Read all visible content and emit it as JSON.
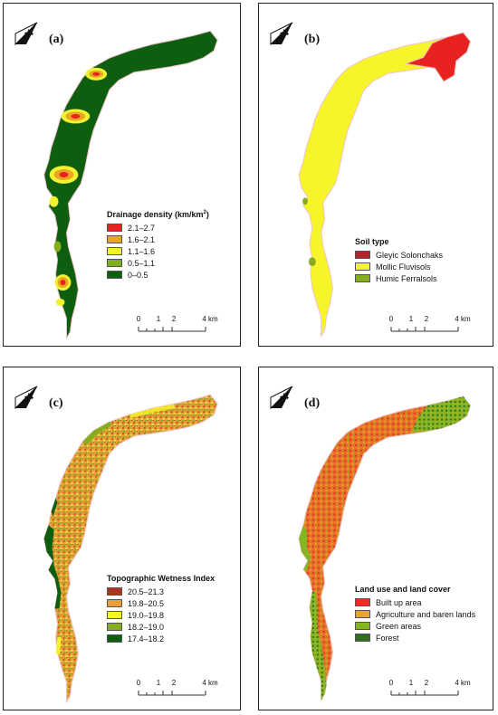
{
  "panels": [
    {
      "label": "(a)",
      "legend": {
        "title": "Drainage density (km/km",
        "title_sup": "2",
        "title_end": ")",
        "items": [
          {
            "label": "2.1–2.7",
            "color": "#e8231f"
          },
          {
            "label": "1.6–2.1",
            "color": "#e8a723"
          },
          {
            "label": "1.1–1.6",
            "color": "#f2f230"
          },
          {
            "label": "0.5–1.1",
            "color": "#7fae1e"
          },
          {
            "label": "0–0.5",
            "color": "#0e5e10"
          }
        ]
      },
      "scale": {
        "ticks": [
          "0",
          "1",
          "2",
          "4 km"
        ]
      }
    },
    {
      "label": "(b)",
      "legend": {
        "title": "Soil type",
        "items": [
          {
            "label": "Gleyic Solonchaks",
            "color": "#b2242a"
          },
          {
            "label": "Mollic Fluvisols",
            "color": "#f5f52a"
          },
          {
            "label": "Humic Ferralsols",
            "color": "#86ad1f"
          }
        ]
      },
      "scale": {
        "ticks": [
          "0",
          "1",
          "2",
          "4 km"
        ]
      }
    },
    {
      "label": "(c)",
      "legend": {
        "title": "Topographic Wetness Index",
        "items": [
          {
            "label": "20.5–21.3",
            "color": "#b2321f"
          },
          {
            "label": "19.8–20.5",
            "color": "#e8a13a"
          },
          {
            "label": "19.0–19.8",
            "color": "#f5f52a"
          },
          {
            "label": "18.2–19.0",
            "color": "#86ad1f"
          },
          {
            "label": "17.4–18.2",
            "color": "#0e5e10"
          }
        ]
      },
      "scale": {
        "ticks": [
          "0",
          "1",
          "2",
          "4 km"
        ]
      }
    },
    {
      "label": "(d)",
      "legend": {
        "title": "Land use and land cover",
        "items": [
          {
            "label": "Built up area",
            "color": "#e8301f"
          },
          {
            "label": "Agriculture and baren lands",
            "color": "#e8a723"
          },
          {
            "label": "Green areas",
            "color": "#86b523"
          },
          {
            "label": "Forest",
            "color": "#2e6e1e"
          }
        ]
      },
      "scale": {
        "ticks": [
          "0",
          "1",
          "2",
          "4 km"
        ]
      }
    }
  ],
  "north_icon": "north-arrow-icon"
}
